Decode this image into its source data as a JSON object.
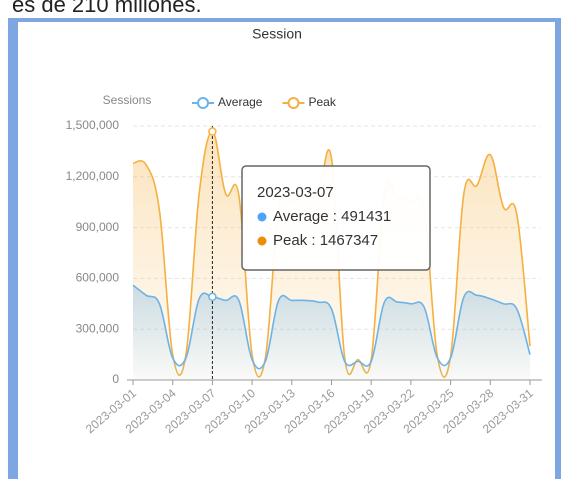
{
  "top_text": "es de 210 millones.",
  "chart_data": {
    "type": "line",
    "title": "Session",
    "y_label": "Sessions",
    "x": [
      "2023-03-01",
      null,
      null,
      "2023-03-04",
      null,
      null,
      "2023-03-07",
      null,
      null,
      "2023-03-10",
      null,
      null,
      "2023-03-13",
      null,
      null,
      "2023-03-16",
      null,
      null,
      "2023-03-19",
      null,
      null,
      "2023-03-22",
      null,
      null,
      "2023-03-25",
      null,
      null,
      "2023-03-28",
      null,
      null,
      "2023-03-31"
    ],
    "series": [
      {
        "name": "Average",
        "color": "#6db3e6",
        "values": [
          560000,
          500000,
          450000,
          130000,
          130000,
          480000,
          491431,
          470000,
          470000,
          120000,
          110000,
          470000,
          470000,
          470000,
          460000,
          420000,
          110000,
          110000,
          110000,
          460000,
          460000,
          450000,
          430000,
          130000,
          130000,
          490000,
          500000,
          480000,
          450000,
          420000,
          150000
        ]
      },
      {
        "name": "Peak",
        "color": "#f5b041",
        "values": [
          1280000,
          1270000,
          1000000,
          150000,
          150000,
          1100000,
          1467347,
          1100000,
          1090000,
          150000,
          130000,
          1000000,
          1050000,
          1080000,
          1100000,
          1310000,
          130000,
          120000,
          120000,
          1100000,
          1080000,
          1050000,
          1000000,
          140000,
          140000,
          1100000,
          1150000,
          1330000,
          1020000,
          980000,
          200000
        ]
      }
    ],
    "ylim": [
      0,
      1500000
    ],
    "yticks": [
      0,
      {
        "value": 300000,
        "label": "300,000"
      },
      {
        "value": 600000,
        "label": "600,000"
      },
      {
        "value": 900000,
        "label": "900,000"
      },
      {
        "value": 1200000,
        "label": "1,200,000"
      },
      {
        "value": 1500000,
        "label": "1,500,000"
      }
    ],
    "grid": true,
    "legend": "top",
    "tooltip_index": 6,
    "tooltip_separator": " : ",
    "tooltip_colors": [
      "#4fa3f7",
      "#f08c00"
    ]
  }
}
